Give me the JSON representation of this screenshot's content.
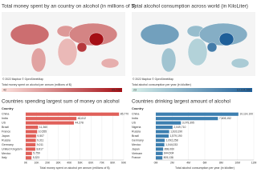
{
  "chart_data": [
    {
      "type": "map",
      "title": "Total money spent by an country on alcohol (in millions of $)",
      "attribution": "© 2022 Mapbox © OpenStreetMap",
      "legend_title": "Total money spent on alcohol per annum (millions of $)",
      "legend_range": [
        42,
        {
          "value": 85770,
          "label": "85,770"
        }
      ],
      "colors": [
        "#fbe3df",
        "#a50f15"
      ]
    },
    {
      "type": "map",
      "title": "Total alcohol consumption across world (in KiloLiter)",
      "attribution": "© 2022 Mapbox © OpenStreetMap",
      "legend_title": "Total alcohol consumption per year (in kiloliter)",
      "legend_range": [
        23,
        {
          "value": 10114100,
          "label": "10,114,100"
        }
      ],
      "colors": [
        "#d8efe9",
        "#1f5f99"
      ]
    },
    {
      "type": "bar",
      "title": "Countries spending largest sum of money on alcohol",
      "category_label": "Country",
      "categories": [
        "China",
        "India",
        "US",
        "Brazil",
        "France",
        "Japan",
        "Russia",
        "Germany",
        "United Kingdom",
        "Mexico",
        "Italy"
      ],
      "values": [
        85770,
        46612,
        44278,
        11360,
        10555,
        9507,
        9311,
        9011,
        8817,
        5759,
        5323
      ],
      "value_labels": [
        "85,770",
        "46,612",
        "44,278",
        "11,360",
        "10,555",
        "9,507",
        "9,311",
        "9,011",
        "8,817",
        "5,759",
        "5,323"
      ],
      "color": "#e0605a",
      "x_label": "Total money spent on alcohol per annum (millions of $)",
      "xlim": [
        0,
        90000
      ],
      "xticks": [
        {
          "value": 0,
          "label": "0K"
        },
        {
          "value": 10000,
          "label": "10K"
        },
        {
          "value": 20000,
          "label": "20K"
        },
        {
          "value": 30000,
          "label": "30K"
        },
        {
          "value": 40000,
          "label": "40K"
        },
        {
          "value": 50000,
          "label": "50K"
        },
        {
          "value": 60000,
          "label": "60K"
        },
        {
          "value": 70000,
          "label": "70K"
        },
        {
          "value": 80000,
          "label": "80K"
        },
        {
          "value": 90000,
          "label": "90K"
        }
      ]
    },
    {
      "type": "bar",
      "title": "Countries drinking largest amount of alcohol",
      "category_label": "Country",
      "categories": [
        "China",
        "India",
        "US",
        "Nigeria",
        "Russia",
        "Brazil",
        "Germany",
        "Mexico",
        "Japan",
        "Vietnam",
        "France"
      ],
      "values": [
        10114100,
        7608152,
        3079395,
        2049710,
        1633190,
        1579190,
        1092258,
        1044033,
        898000,
        844504,
        805136
      ],
      "value_labels": [
        "10,114,100",
        "7,608,152",
        "3,079,395",
        "2,049,710",
        "1,633,190",
        "1,579,190",
        "1,092,258",
        "1,044,033",
        "898,000",
        "844,504",
        "805,136"
      ],
      "color": "#3d7fb0",
      "x_label": "Total alcohol consumption per year (in kiloliter)",
      "xlim": [
        0,
        12000000
      ],
      "xticks": [
        {
          "value": 0,
          "label": "0M"
        },
        {
          "value": 2000000,
          "label": "2M"
        },
        {
          "value": 4000000,
          "label": "4M"
        },
        {
          "value": 6000000,
          "label": "6M"
        },
        {
          "value": 8000000,
          "label": "8M"
        },
        {
          "value": 10000000,
          "label": "10M"
        },
        {
          "value": 12000000,
          "label": "12M"
        }
      ]
    }
  ]
}
